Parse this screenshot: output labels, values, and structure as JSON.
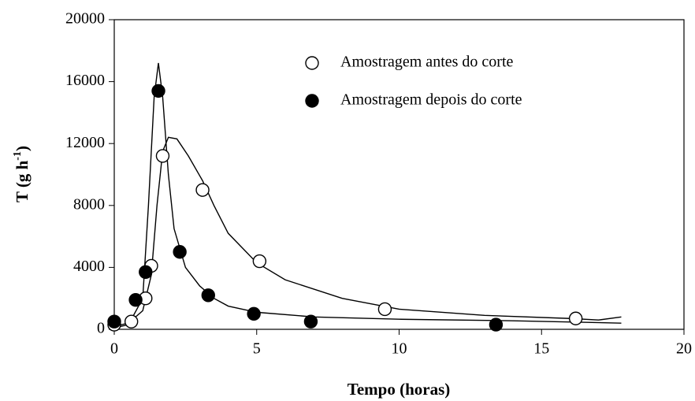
{
  "chart_data": {
    "type": "scatter",
    "xlabel": "Tempo (horas)",
    "ylabel": [
      "T (g h",
      "-1",
      ")"
    ],
    "xlim": [
      0,
      20
    ],
    "xticks": [
      0,
      5,
      10,
      15,
      20
    ],
    "ylim": [
      0,
      20000
    ],
    "yticks": [
      0,
      4000,
      8000,
      12000,
      16000,
      20000
    ],
    "legend": "upper center",
    "series": [
      {
        "name": "Amostragem antes do corte",
        "color": "#000000",
        "filled": false,
        "x": [
          0,
          0.6,
          1.1,
          1.3,
          1.7,
          3.1,
          5.1,
          9.5,
          16.2
        ],
        "values": [
          300,
          500,
          2000,
          4100,
          11200,
          9000,
          4400,
          1300,
          700
        ]
      },
      {
        "name": "Amostragem depois do corte",
        "color": "#000000",
        "filled": true,
        "x": [
          0,
          0.75,
          1.1,
          1.55,
          2.3,
          3.3,
          4.9,
          6.9,
          13.4
        ],
        "values": [
          500,
          1900,
          3700,
          15400,
          5000,
          2200,
          1000,
          500,
          300
        ]
      }
    ],
    "curves": [
      {
        "color": "#000000",
        "x": [
          0,
          0.5,
          1,
          1.3,
          1.5,
          1.7,
          1.9,
          2.2,
          2.6,
          3.1,
          3.5,
          4,
          5,
          6,
          8,
          10,
          13,
          16,
          17,
          17.8
        ],
        "values": [
          200,
          400,
          1200,
          3500,
          8000,
          11500,
          12400,
          12300,
          11200,
          9600,
          8000,
          6200,
          4300,
          3200,
          2000,
          1300,
          900,
          700,
          600,
          800
        ]
      },
      {
        "color": "#000000",
        "x": [
          0,
          0.5,
          1,
          1.2,
          1.4,
          1.55,
          1.7,
          1.9,
          2.1,
          2.5,
          3,
          3.5,
          4,
          5,
          7,
          10,
          14,
          17.8
        ],
        "values": [
          100,
          300,
          2000,
          8000,
          15000,
          17200,
          15000,
          10000,
          6500,
          4000,
          2800,
          2000,
          1500,
          1100,
          800,
          650,
          550,
          400
        ]
      }
    ]
  }
}
